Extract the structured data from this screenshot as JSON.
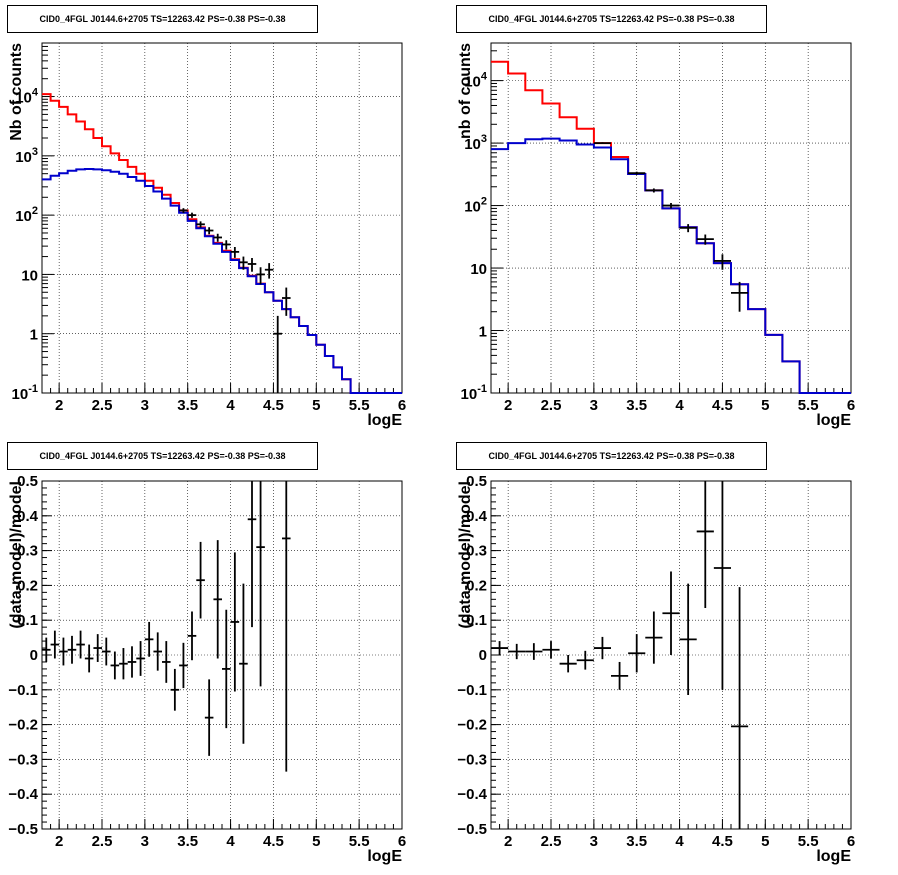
{
  "chart_data": [
    {
      "type": "line",
      "title": "CID0_4FGL J0144.6+2705 TS=12263.42 PS=-0.38 PS=-0.38",
      "xlabel": "logE",
      "ylabel": "Nb of counts",
      "xlim": [
        1.8,
        6.0
      ],
      "ylim": [
        0.1,
        80000
      ],
      "yscale": "log",
      "grid": true,
      "xticks": [
        "2",
        "2.5",
        "3",
        "3.5",
        "4",
        "4.5",
        "5",
        "5.5",
        "6"
      ],
      "yticks": [
        "10^-1",
        "1",
        "10",
        "10^2",
        "10^3",
        "10^4"
      ],
      "series": [
        {
          "color": "#ff0000",
          "style": "step",
          "bin_edges": [
            1.8,
            1.9,
            2.0,
            2.1,
            2.2,
            2.3,
            2.4,
            2.5,
            2.6,
            2.7,
            2.8,
            2.9,
            3.0,
            3.1,
            3.2,
            3.3,
            3.4,
            3.5,
            3.6,
            3.7,
            3.8,
            3.9,
            4.0,
            4.1,
            4.2,
            4.3,
            4.4,
            4.5,
            4.6,
            4.7,
            4.8,
            4.9,
            5.0,
            5.1,
            5.2,
            5.3,
            5.4,
            5.5,
            5.6,
            5.7,
            5.8,
            5.9,
            6.0
          ],
          "values": [
            11000,
            8500,
            6700,
            5000,
            3800,
            2800,
            2000,
            1450,
            1100,
            850,
            650,
            500,
            380,
            290,
            220,
            160,
            120,
            85,
            62,
            45,
            34,
            25,
            18,
            13,
            9.5,
            7,
            5,
            3.6,
            2.6,
            1.9,
            1.35,
            0.95,
            0.65,
            0.42,
            0.27,
            0.17,
            0.1,
            0.1,
            0.1,
            0.1,
            0.1,
            0.1
          ]
        },
        {
          "color": "#0000cc",
          "style": "step",
          "bin_edges": [
            1.8,
            1.9,
            2.0,
            2.1,
            2.2,
            2.3,
            2.4,
            2.5,
            2.6,
            2.7,
            2.8,
            2.9,
            3.0,
            3.1,
            3.2,
            3.3,
            3.4,
            3.5,
            3.6,
            3.7,
            3.8,
            3.9,
            4.0,
            4.1,
            4.2,
            4.3,
            4.4,
            4.5,
            4.6,
            4.7,
            4.8,
            4.9,
            5.0,
            5.1,
            5.2,
            5.3,
            5.4,
            5.5,
            5.6,
            5.7,
            5.8,
            5.9,
            6.0
          ],
          "values": [
            400,
            460,
            510,
            560,
            590,
            600,
            590,
            570,
            540,
            500,
            440,
            380,
            310,
            250,
            190,
            145,
            110,
            80,
            60,
            44,
            33,
            24,
            17.5,
            12.8,
            9.3,
            6.9,
            5,
            3.6,
            2.6,
            1.9,
            1.35,
            0.95,
            0.65,
            0.42,
            0.27,
            0.17,
            0.1,
            0.1,
            0.1,
            0.1,
            0.1,
            0.1
          ]
        },
        {
          "color": "#000000",
          "style": "errorbar",
          "x": [
            3.45,
            3.55,
            3.65,
            3.75,
            3.85,
            3.95,
            4.05,
            4.15,
            4.25,
            4.35,
            4.45,
            4.55,
            4.65
          ],
          "values": [
            120,
            100,
            70,
            55,
            42,
            32,
            24,
            16,
            15,
            10,
            12,
            1,
            4
          ],
          "errors": [
            11,
            10,
            8.5,
            7.5,
            6.5,
            5.7,
            5,
            4,
            3.9,
            3.2,
            3.5,
            1,
            2
          ]
        }
      ]
    },
    {
      "type": "line",
      "title": "CID0_4FGL J0144.6+2705 TS=12263.42 PS=-0.38 PS=-0.38",
      "xlabel": "logE",
      "ylabel": "nb of counts",
      "xlim": [
        1.8,
        6.0
      ],
      "ylim": [
        0.1,
        40000
      ],
      "yscale": "log",
      "grid": true,
      "xticks": [
        "2",
        "2.5",
        "3",
        "3.5",
        "4",
        "4.5",
        "5",
        "5.5",
        "6"
      ],
      "yticks": [
        "10^-1",
        "1",
        "10",
        "10^2",
        "10^3",
        "10^4"
      ],
      "series": [
        {
          "color": "#ff0000",
          "style": "step",
          "bin_edges": [
            1.8,
            2.0,
            2.2,
            2.4,
            2.6,
            2.8,
            3.0,
            3.2,
            3.4,
            3.6,
            3.8,
            4.0,
            4.2,
            4.4,
            4.6,
            4.8,
            5.0,
            5.2,
            5.4,
            5.6,
            5.8,
            6.0
          ],
          "values": [
            20000,
            13000,
            7000,
            4300,
            2600,
            1700,
            1000,
            600,
            320,
            175,
            90,
            45,
            25,
            12,
            5.5,
            2.2,
            0.85,
            0.32,
            0.1,
            0.1,
            0.1
          ]
        },
        {
          "color": "#0000cc",
          "style": "step",
          "bin_edges": [
            1.8,
            2.0,
            2.2,
            2.4,
            2.6,
            2.8,
            3.0,
            3.2,
            3.4,
            3.6,
            3.8,
            4.0,
            4.2,
            4.4,
            4.6,
            4.8,
            5.0,
            5.2,
            5.4,
            5.6,
            5.8,
            6.0
          ],
          "values": [
            800,
            1000,
            1150,
            1180,
            1100,
            950,
            850,
            550,
            320,
            175,
            90,
            45,
            25,
            12,
            5.5,
            2.2,
            0.85,
            0.32,
            0.1,
            0.1,
            0.1
          ]
        },
        {
          "color": "#000000",
          "style": "errorbar",
          "x": [
            3.1,
            3.5,
            3.7,
            3.9,
            4.1,
            4.3,
            4.5,
            4.7
          ],
          "values": [
            1000,
            330,
            175,
            100,
            44,
            29,
            13,
            4
          ],
          "errors": [
            30,
            18,
            13,
            10,
            6.5,
            5.4,
            3.6,
            2
          ]
        }
      ]
    },
    {
      "type": "scatter",
      "title": "CID0_4FGL J0144.6+2705 TS=12263.42 PS=-0.38 PS=-0.38",
      "xlabel": "logE",
      "ylabel": "(data-model)/model",
      "xlim": [
        1.8,
        6.0
      ],
      "ylim": [
        -0.5,
        0.5
      ],
      "grid": true,
      "xticks": [
        "2",
        "2.5",
        "3",
        "3.5",
        "4",
        "4.5",
        "5",
        "5.5",
        "6"
      ],
      "yticks": [
        "-0.5",
        "-0.4",
        "-0.3",
        "-0.2",
        "-0.1",
        "0",
        "0.1",
        "0.2",
        "0.3",
        "0.4",
        "0.5"
      ],
      "bin_width": 0.1,
      "x": [
        1.85,
        1.95,
        2.05,
        2.15,
        2.25,
        2.35,
        2.45,
        2.55,
        2.65,
        2.75,
        2.85,
        2.95,
        3.05,
        3.15,
        3.25,
        3.35,
        3.45,
        3.55,
        3.65,
        3.75,
        3.85,
        3.95,
        4.05,
        4.15,
        4.25,
        4.35,
        4.65
      ],
      "y": [
        0.015,
        0.03,
        0.01,
        0.015,
        0.03,
        -0.01,
        0.02,
        0.01,
        -0.03,
        -0.025,
        -0.02,
        -0.01,
        0.045,
        0.01,
        -0.02,
        -0.1,
        -0.03,
        0.055,
        0.215,
        -0.18,
        0.16,
        -0.04,
        0.095,
        -0.025,
        0.39,
        0.31,
        0.335
      ],
      "errors": [
        0.035,
        0.04,
        0.04,
        0.04,
        0.04,
        0.04,
        0.04,
        0.04,
        0.04,
        0.045,
        0.045,
        0.05,
        0.05,
        0.055,
        0.06,
        0.06,
        0.065,
        0.07,
        0.11,
        0.11,
        0.17,
        0.17,
        0.2,
        0.23,
        0.31,
        0.4,
        0.67
      ]
    },
    {
      "type": "scatter",
      "title": "CID0_4FGL J0144.6+2705 TS=12263.42 PS=-0.38 PS=-0.38",
      "xlabel": "logE",
      "ylabel": "(data-model)/model",
      "xlim": [
        1.8,
        6.0
      ],
      "ylim": [
        -0.5,
        0.5
      ],
      "grid": true,
      "xticks": [
        "2",
        "2.5",
        "3",
        "3.5",
        "4",
        "4.5",
        "5",
        "5.5",
        "6"
      ],
      "yticks": [
        "-0.5",
        "-0.4",
        "-0.3",
        "-0.2",
        "-0.1",
        "0",
        "0.1",
        "0.2",
        "0.3",
        "0.4",
        "0.5"
      ],
      "bin_width": 0.2,
      "x": [
        1.9,
        2.1,
        2.3,
        2.5,
        2.7,
        2.9,
        3.1,
        3.3,
        3.5,
        3.7,
        3.9,
        4.1,
        4.3,
        4.5,
        4.7
      ],
      "y": [
        0.02,
        0.01,
        0.01,
        0.015,
        -0.025,
        -0.015,
        0.02,
        -0.06,
        0.005,
        0.05,
        0.12,
        0.045,
        0.355,
        0.25,
        -0.205
      ],
      "errors": [
        0.02,
        0.022,
        0.024,
        0.025,
        0.025,
        0.027,
        0.032,
        0.04,
        0.055,
        0.075,
        0.12,
        0.16,
        0.22,
        0.35,
        0.4
      ]
    }
  ]
}
